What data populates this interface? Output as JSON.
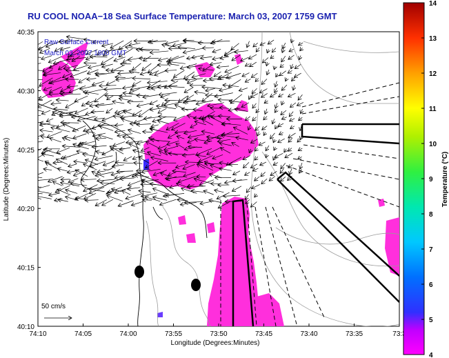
{
  "title": "RU COOL  NOAA−18  Sea Surface Temperature:  March 03, 2007 1759 GMT",
  "legend": {
    "line1": "Raw Surface Current",
    "line2": "March 03, 2007 1800 GMT",
    "color": "#2020c8"
  },
  "axes": {
    "ylabel": "Latitude (Degrees:Minutes)",
    "xlabel": "Longitude (Degrees:Minutes)",
    "yticks": [
      "40:35",
      "40:30",
      "40:25",
      "40:20",
      "40:15",
      "40:10"
    ],
    "xticks": [
      "74:10",
      "74:05",
      "74:00",
      "73:55",
      "73:50",
      "73:45",
      "73:40",
      "73:35",
      "73:3"
    ]
  },
  "scale": {
    "label": "50 cm/s"
  },
  "colorbar": {
    "label": "Temperature (°C)",
    "ticks": [
      "14",
      "13",
      "12",
      "11",
      "10",
      "9",
      "8",
      "7",
      "6",
      "5",
      "4"
    ],
    "min": 4,
    "max": 14
  },
  "colors": {
    "sst_fill": "#ff2fdc",
    "sst_cold": "#3a2cff",
    "title": "#1b22b0"
  }
}
